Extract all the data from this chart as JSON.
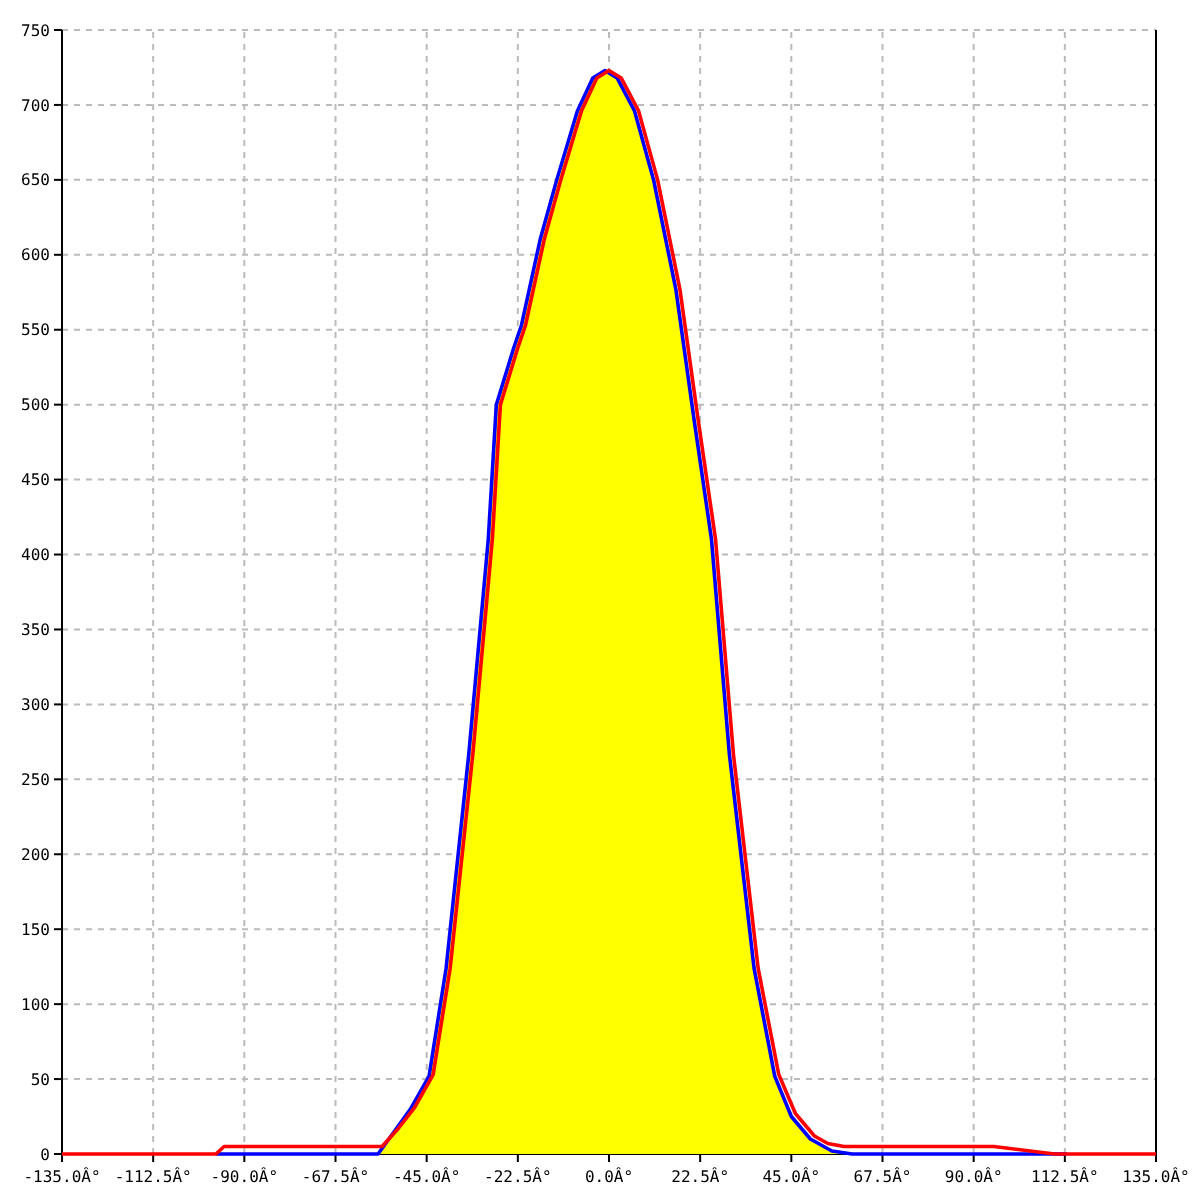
{
  "chart_data": {
    "type": "line",
    "xlim": [
      -135,
      135
    ],
    "ylim": [
      0,
      750
    ],
    "xticks": [
      {
        "value": -135,
        "label": "-135.0Â°"
      },
      {
        "value": -112.5,
        "label": "-112.5Â°"
      },
      {
        "value": -90,
        "label": "-90.0Â°"
      },
      {
        "value": -67.5,
        "label": "-67.5Â°"
      },
      {
        "value": -45,
        "label": "-45.0Â°"
      },
      {
        "value": -22.5,
        "label": "-22.5Â°"
      },
      {
        "value": 0,
        "label": "0.0Â°"
      },
      {
        "value": 22.5,
        "label": "22.5Â°"
      },
      {
        "value": 45,
        "label": "45.0Â°"
      },
      {
        "value": 67.5,
        "label": "67.5Â°"
      },
      {
        "value": 90,
        "label": "90.0Â°"
      },
      {
        "value": 112.5,
        "label": "112.5Â°"
      },
      {
        "value": 135,
        "label": "135.0Â°"
      }
    ],
    "yticks": [
      0,
      50,
      100,
      150,
      200,
      250,
      300,
      350,
      400,
      450,
      500,
      550,
      600,
      650,
      700,
      750
    ],
    "grid": true,
    "marker": "none",
    "line_style": "solid",
    "series": [
      {
        "type": "area",
        "color": "#ffff00",
        "x": [
          -57,
          -53,
          -49,
          -44.4,
          -40.2,
          -34.6,
          -29.8,
          -27.8,
          -23.5,
          -21.6,
          -17,
          -13,
          -7.8,
          -4,
          -1,
          2,
          6.3,
          11,
          16.5,
          21,
          25.3,
          29.7,
          35.8,
          40.9,
          45,
          49.7,
          55,
          60
        ],
        "values": [
          0,
          15,
          30,
          52,
          124,
          267,
          410,
          500,
          538,
          553,
          610,
          649,
          696,
          718,
          723,
          718,
          696,
          650,
          577,
          490,
          410,
          267,
          124,
          52,
          25,
          10,
          2,
          0
        ]
      },
      {
        "color": "#0000ff",
        "x": [
          -97,
          -57,
          -53,
          -49,
          -44.4,
          -40.2,
          -34.6,
          -29.8,
          -27.8,
          -23.5,
          -21.6,
          -17,
          -13,
          -7.8,
          -4,
          -1,
          2,
          6.3,
          11,
          16.5,
          21,
          25.3,
          29.7,
          35.8,
          40.9,
          45,
          49.7,
          55,
          60,
          113
        ],
        "values": [
          0,
          0,
          15,
          30,
          52,
          124,
          267,
          410,
          500,
          538,
          553,
          610,
          649,
          696,
          718,
          723,
          718,
          696,
          650,
          577,
          490,
          410,
          267,
          124,
          52,
          25,
          10,
          2,
          0,
          0
        ]
      },
      {
        "color": "#ff0000",
        "x": [
          -135,
          -97,
          -95,
          -56,
          -52,
          -48,
          -43.4,
          -39.2,
          -33.6,
          -28.8,
          -26.8,
          -22.5,
          -20.6,
          -16,
          -12,
          -6.8,
          -3,
          0,
          3,
          7.3,
          12,
          17.5,
          22,
          26.3,
          30.7,
          36.8,
          41.9,
          46,
          50.7,
          54,
          58,
          95,
          110,
          135
        ],
        "values": [
          0,
          0,
          5,
          5,
          17,
          31,
          53,
          124,
          267,
          410,
          500,
          538,
          553,
          610,
          649,
          696,
          718,
          723,
          718,
          696,
          650,
          577,
          490,
          410,
          267,
          124,
          53,
          27,
          12,
          7,
          5,
          5,
          0,
          0
        ]
      }
    ]
  }
}
